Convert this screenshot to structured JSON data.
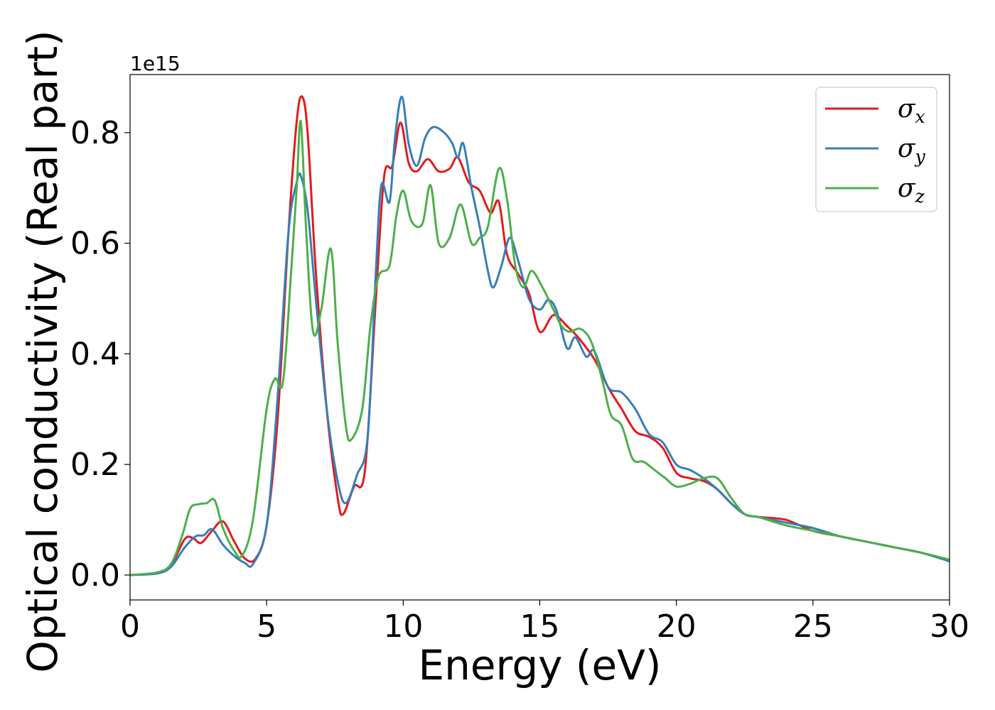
{
  "chart_data": {
    "type": "line",
    "title": "",
    "xlabel": "Energy (eV)",
    "ylabel": "Optical conductivity (Real part)",
    "y_offset_label": "1e15",
    "xlim": [
      0,
      30
    ],
    "ylim": [
      -0.045,
      0.905
    ],
    "x_ticks": [
      0,
      5,
      10,
      15,
      20,
      25,
      30
    ],
    "x_tick_labels": [
      "0",
      "5",
      "10",
      "15",
      "20",
      "25",
      "30"
    ],
    "y_ticks": [
      0.0,
      0.2,
      0.4,
      0.6,
      0.8
    ],
    "y_tick_labels": [
      "0.0",
      "0.2",
      "0.4",
      "0.6",
      "0.8"
    ],
    "grid": false,
    "legend_position": "top-right",
    "series": [
      {
        "name": "σx",
        "label_main": "σ",
        "label_sub": "x",
        "color": "#e41a1c",
        "x": [
          0,
          1,
          1.5,
          2,
          2.3,
          2.6,
          3,
          3.4,
          3.8,
          4.2,
          4.6,
          5,
          5.4,
          5.8,
          6.1,
          6.3,
          6.5,
          6.8,
          7.2,
          7.6,
          7.8,
          8.2,
          8.6,
          9,
          9.3,
          9.6,
          9.9,
          10.2,
          10.5,
          10.9,
          11.3,
          11.7,
          12,
          12.4,
          12.8,
          13.2,
          13.5,
          13.8,
          14.2,
          14.6,
          15,
          15.5,
          16,
          16.4,
          17,
          17.5,
          18,
          18.5,
          19,
          19.5,
          20,
          20.5,
          21,
          21.5,
          22,
          22.5,
          23,
          24,
          25,
          26,
          27,
          28,
          29,
          30
        ],
        "y": [
          0,
          0.004,
          0.018,
          0.065,
          0.067,
          0.058,
          0.08,
          0.097,
          0.062,
          0.03,
          0.03,
          0.09,
          0.28,
          0.62,
          0.82,
          0.865,
          0.8,
          0.55,
          0.3,
          0.14,
          0.11,
          0.16,
          0.19,
          0.5,
          0.72,
          0.74,
          0.818,
          0.745,
          0.73,
          0.752,
          0.73,
          0.735,
          0.755,
          0.71,
          0.695,
          0.655,
          0.675,
          0.58,
          0.545,
          0.51,
          0.44,
          0.47,
          0.45,
          0.43,
          0.39,
          0.34,
          0.3,
          0.26,
          0.25,
          0.23,
          0.185,
          0.175,
          0.17,
          0.155,
          0.13,
          0.11,
          0.105,
          0.1,
          0.08,
          0.07,
          0.06,
          0.05,
          0.04,
          0.025
        ]
      },
      {
        "name": "σy",
        "label_main": "σ",
        "label_sub": "y",
        "color": "#377eb8",
        "x": [
          0,
          1,
          1.5,
          2,
          2.4,
          2.7,
          3,
          3.4,
          3.8,
          4.2,
          4.5,
          5,
          5.4,
          5.8,
          6.1,
          6.25,
          6.5,
          6.8,
          7.2,
          7.6,
          7.9,
          8.3,
          8.7,
          9,
          9.2,
          9.5,
          9.7,
          9.95,
          10.2,
          10.5,
          10.8,
          11.1,
          11.5,
          11.8,
          12,
          12.2,
          12.5,
          12.8,
          13.1,
          13.3,
          13.6,
          13.9,
          14.2,
          14.6,
          15,
          15.3,
          15.6,
          16,
          16.3,
          16.7,
          17,
          17.5,
          18,
          18.5,
          19,
          19.5,
          20,
          20.5,
          21,
          21.5,
          22,
          22.5,
          23,
          24,
          25,
          26,
          27,
          28,
          29,
          30
        ],
        "y": [
          0,
          0.003,
          0.015,
          0.05,
          0.07,
          0.072,
          0.083,
          0.055,
          0.035,
          0.022,
          0.02,
          0.09,
          0.32,
          0.62,
          0.71,
          0.722,
          0.66,
          0.5,
          0.3,
          0.17,
          0.13,
          0.18,
          0.25,
          0.55,
          0.705,
          0.675,
          0.79,
          0.865,
          0.78,
          0.74,
          0.79,
          0.81,
          0.8,
          0.78,
          0.755,
          0.78,
          0.7,
          0.63,
          0.55,
          0.52,
          0.56,
          0.61,
          0.57,
          0.5,
          0.48,
          0.497,
          0.48,
          0.41,
          0.43,
          0.395,
          0.405,
          0.34,
          0.33,
          0.3,
          0.255,
          0.24,
          0.2,
          0.19,
          0.175,
          0.155,
          0.13,
          0.11,
          0.105,
          0.095,
          0.085,
          0.07,
          0.06,
          0.05,
          0.04,
          0.025
        ]
      },
      {
        "name": "σz",
        "label_main": "σ",
        "label_sub": "z",
        "color": "#4daf4a",
        "x": [
          0,
          1,
          1.5,
          1.9,
          2.2,
          2.5,
          2.8,
          3.1,
          3.4,
          3.8,
          4.1,
          4.5,
          5,
          5.3,
          5.6,
          5.9,
          6.1,
          6.25,
          6.45,
          6.7,
          7,
          7.35,
          7.6,
          7.9,
          8.1,
          8.5,
          8.8,
          9.1,
          9.5,
          9.75,
          10,
          10.3,
          10.7,
          11,
          11.3,
          11.7,
          12.1,
          12.5,
          12.8,
          13.1,
          13.5,
          13.8,
          14.1,
          14.4,
          14.7,
          15.1,
          15.5,
          15.8,
          16.1,
          16.5,
          16.9,
          17.3,
          17.6,
          18,
          18.4,
          18.8,
          19.2,
          19.6,
          20,
          20.5,
          21,
          21.5,
          22,
          22.5,
          23,
          24,
          25,
          26,
          27,
          28,
          29,
          30
        ],
        "y": [
          0,
          0.005,
          0.02,
          0.07,
          0.12,
          0.128,
          0.13,
          0.135,
          0.085,
          0.045,
          0.035,
          0.1,
          0.3,
          0.355,
          0.35,
          0.55,
          0.7,
          0.82,
          0.62,
          0.44,
          0.48,
          0.59,
          0.42,
          0.27,
          0.245,
          0.3,
          0.45,
          0.54,
          0.56,
          0.65,
          0.695,
          0.64,
          0.635,
          0.705,
          0.6,
          0.61,
          0.67,
          0.6,
          0.61,
          0.63,
          0.735,
          0.68,
          0.56,
          0.52,
          0.55,
          0.52,
          0.48,
          0.45,
          0.44,
          0.445,
          0.42,
          0.35,
          0.29,
          0.27,
          0.21,
          0.205,
          0.19,
          0.175,
          0.16,
          0.165,
          0.175,
          0.175,
          0.14,
          0.11,
          0.105,
          0.09,
          0.08,
          0.07,
          0.06,
          0.05,
          0.04,
          0.028
        ]
      }
    ]
  }
}
